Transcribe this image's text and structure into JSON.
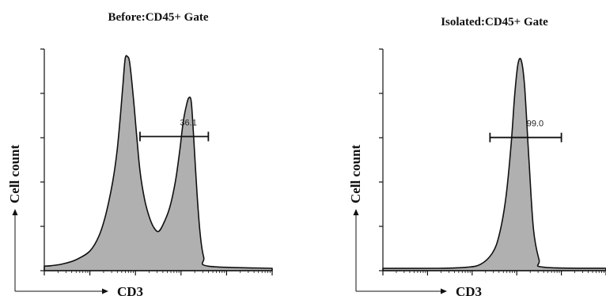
{
  "chart_data": [
    {
      "type": "area",
      "title": "Before:CD45+ Gate",
      "xlabel": "CD3",
      "ylabel": "Cell count",
      "x_scale": "log",
      "xlim": [
        0,
        1
      ],
      "ylim": [
        0,
        1
      ],
      "grid": false,
      "fill_color": "#b0b0b0",
      "line_color": "#111111",
      "series": [
        {
          "x": [
            0.0,
            0.03,
            0.08,
            0.14,
            0.2,
            0.24,
            0.27,
            0.3,
            0.32,
            0.335,
            0.345,
            0.355,
            0.365,
            0.375,
            0.39,
            0.405,
            0.42,
            0.44,
            0.46,
            0.48,
            0.5,
            0.52,
            0.55,
            0.575,
            0.595,
            0.61,
            0.625,
            0.635,
            0.645,
            0.655,
            0.67,
            0.685,
            0.7,
            0.72,
            1.0
          ],
          "y": [
            0.01,
            0.012,
            0.02,
            0.04,
            0.08,
            0.15,
            0.25,
            0.4,
            0.55,
            0.72,
            0.85,
            0.97,
            0.98,
            0.95,
            0.8,
            0.62,
            0.45,
            0.32,
            0.24,
            0.19,
            0.17,
            0.2,
            0.28,
            0.4,
            0.55,
            0.68,
            0.76,
            0.79,
            0.77,
            0.62,
            0.35,
            0.15,
            0.05,
            0.01,
            0.0
          ]
        }
      ],
      "gate": {
        "x_start": 0.42,
        "x_end": 0.72,
        "y": 0.61,
        "label": "36.1"
      }
    },
    {
      "type": "area",
      "title": "Isolated:CD45+ Gate",
      "xlabel": "CD3",
      "ylabel": "Cell count",
      "x_scale": "log",
      "xlim": [
        0,
        1
      ],
      "ylim": [
        0,
        1
      ],
      "grid": false,
      "fill_color": "#b0b0b0",
      "line_color": "#111111",
      "series": [
        {
          "x": [
            0.0,
            0.25,
            0.38,
            0.44,
            0.49,
            0.52,
            0.55,
            0.575,
            0.59,
            0.605,
            0.62,
            0.635,
            0.655,
            0.675,
            0.7,
            0.72,
            1.0
          ],
          "y": [
            0.0,
            0.0,
            0.005,
            0.02,
            0.07,
            0.15,
            0.32,
            0.58,
            0.8,
            0.95,
            0.97,
            0.85,
            0.5,
            0.18,
            0.04,
            0.005,
            0.0
          ]
        }
      ],
      "gate": {
        "x_start": 0.48,
        "x_end": 0.8,
        "y": 0.61,
        "label": "99.0"
      }
    }
  ]
}
